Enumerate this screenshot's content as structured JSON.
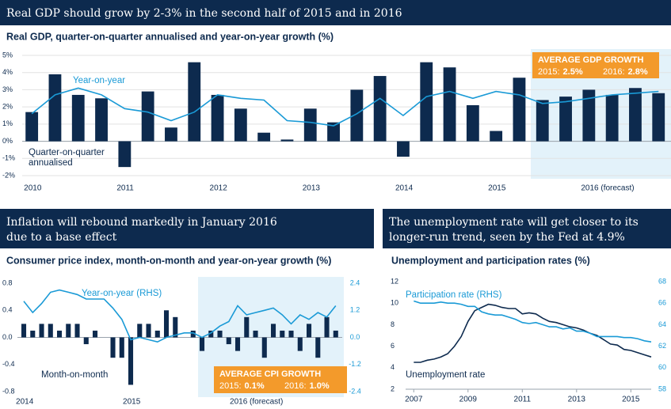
{
  "chart_data": [
    {
      "type": "bar",
      "title": [
        "Real GDP should grow by 2-3% in the second half of 2015 and in 2016"
      ],
      "subtitle": "Real GDP, quarter-on-quarter annualised and year-on-year growth (%)",
      "categories": [
        "2010",
        null,
        null,
        null,
        "2011",
        null,
        null,
        null,
        "2012",
        null,
        null,
        null,
        "2013",
        null,
        null,
        null,
        "2014",
        null,
        null,
        null,
        "2015",
        null,
        null,
        null,
        "2016 (forecast)",
        null,
        null,
        null
      ],
      "series": [
        {
          "name": "Quarter-on-quarter annualised",
          "type": "bar",
          "color": "#0d2a4e",
          "values": [
            1.7,
            3.9,
            2.7,
            2.5,
            -1.5,
            2.9,
            0.8,
            4.6,
            2.7,
            1.9,
            0.5,
            0.1,
            1.9,
            1.1,
            3.0,
            3.8,
            -0.9,
            4.6,
            4.3,
            2.1,
            0.6,
            3.7,
            2.4,
            2.6,
            3.0,
            2.7,
            3.1,
            2.8
          ]
        },
        {
          "name": "Year-on-year",
          "type": "line",
          "color": "#1a9ad6",
          "values": [
            1.6,
            2.7,
            3.1,
            2.7,
            1.9,
            1.7,
            1.2,
            1.7,
            2.7,
            2.5,
            2.4,
            1.2,
            1.1,
            0.9,
            1.6,
            2.5,
            1.5,
            2.6,
            2.9,
            2.5,
            2.9,
            2.7,
            2.2,
            2.3,
            2.5,
            2.7,
            2.8,
            2.9
          ]
        }
      ],
      "ylim": [
        -2,
        5
      ],
      "yticks": [
        {
          "value": 5,
          "label": "5%"
        },
        {
          "value": 4,
          "label": "4%"
        },
        {
          "value": 3,
          "label": "3%"
        },
        {
          "value": 2,
          "label": "2%"
        },
        {
          "value": 1,
          "label": "1%"
        },
        {
          "value": 0,
          "label": "0%"
        },
        {
          "value": -1,
          "label": "-1%"
        },
        {
          "value": -2,
          "label": "-2%"
        }
      ],
      "grid": true,
      "annotation": {
        "title": "AVERAGE GDP GROWTH",
        "items": [
          {
            "label": "2015:",
            "value": "2.5%"
          },
          {
            "label": "2016:",
            "value": "2.8%"
          }
        ]
      }
    },
    {
      "type": "bar",
      "title": [
        "Inflation will rebound markedly in January 2016",
        "due to a base effect"
      ],
      "subtitle": "Consumer price index, month-on-month and year-on-year growth (%)",
      "categories": [
        "2014",
        null,
        null,
        null,
        null,
        null,
        null,
        null,
        null,
        null,
        null,
        null,
        "2015",
        null,
        null,
        null,
        null,
        null,
        null,
        null,
        null,
        null,
        null,
        null,
        "2016 (forecast)",
        null,
        null,
        null,
        null,
        null,
        null,
        null,
        null,
        null,
        null,
        null
      ],
      "series": [
        {
          "name": "Month-on-month",
          "type": "bar",
          "color": "#0d2a4e",
          "values": [
            0.2,
            0.1,
            0.2,
            0.2,
            0.1,
            0.2,
            0.2,
            -0.1,
            0.1,
            0.0,
            -0.3,
            -0.3,
            -0.7,
            0.2,
            0.2,
            0.1,
            0.4,
            0.3,
            0.0,
            0.1,
            -0.2,
            0.1,
            0.1,
            -0.1,
            -0.2,
            0.3,
            0.1,
            -0.3,
            0.2,
            0.1,
            0.1,
            -0.2,
            0.2,
            -0.3,
            0.3,
            0.1
          ]
        },
        {
          "name": "Year-on-year (RHS)",
          "type": "line",
          "axis": "y2",
          "color": "#1a9ad6",
          "values": [
            1.6,
            1.1,
            1.5,
            2.0,
            2.1,
            2.0,
            1.9,
            1.7,
            1.7,
            1.7,
            1.3,
            0.8,
            -0.1,
            0.0,
            -0.1,
            -0.2,
            0.0,
            0.1,
            0.2,
            0.2,
            0.0,
            0.2,
            0.5,
            0.7,
            1.4,
            1.0,
            1.1,
            1.2,
            1.3,
            1.0,
            0.6,
            1.0,
            0.8,
            1.1,
            0.9,
            1.4
          ]
        }
      ],
      "ylim": [
        -0.8,
        0.8
      ],
      "yticks": [
        0.8,
        0.4,
        {
          "value": 0,
          "label": "0.0"
        },
        -0.4,
        -0.8
      ],
      "y2lim": [
        -2.4,
        2.4
      ],
      "y2ticks": [
        2.4,
        1.2,
        {
          "value": 0,
          "label": "0.0"
        },
        -1.2,
        -2.4
      ],
      "grid": false,
      "annotation": {
        "title": "AVERAGE CPI GROWTH",
        "items": [
          {
            "label": "2015:",
            "value": "0.1%"
          },
          {
            "label": "2016:",
            "value": "1.0%"
          }
        ]
      }
    },
    {
      "type": "line",
      "title": [
        "The unemployment rate will get closer to its",
        "longer-run trend, seen by the Fed at 4.9%"
      ],
      "subtitle": "Unemployment and participation rates (%)",
      "x": [
        2007,
        2007.25,
        2007.5,
        2007.75,
        2008,
        2008.25,
        2008.5,
        2008.75,
        2009,
        2009.25,
        2009.5,
        2009.75,
        2010,
        2010.25,
        2010.5,
        2010.75,
        2011,
        2011.25,
        2011.5,
        2011.75,
        2012,
        2012.25,
        2012.5,
        2012.75,
        2013,
        2013.25,
        2013.5,
        2013.75,
        2014,
        2014.25,
        2014.5,
        2014.75,
        2015,
        2015.25,
        2015.5,
        2015.75
      ],
      "series": [
        {
          "name": "Unemployment rate",
          "type": "line",
          "color": "#0d2a4e",
          "values": [
            4.5,
            4.5,
            4.7,
            4.8,
            5.0,
            5.3,
            6.0,
            6.9,
            8.3,
            9.3,
            9.6,
            9.9,
            9.8,
            9.6,
            9.5,
            9.5,
            9.0,
            9.1,
            9.0,
            8.6,
            8.3,
            8.2,
            8.0,
            7.8,
            7.7,
            7.5,
            7.2,
            7.0,
            6.6,
            6.2,
            6.1,
            5.7,
            5.6,
            5.4,
            5.2,
            5.0
          ]
        },
        {
          "name": "Participation rate (RHS)",
          "type": "line",
          "axis": "y2",
          "color": "#1a9ad6",
          "values": [
            66.2,
            66.0,
            66.0,
            66.0,
            66.1,
            66.0,
            66.0,
            65.9,
            65.7,
            65.7,
            65.2,
            65.0,
            64.9,
            64.9,
            64.7,
            64.5,
            64.2,
            64.1,
            64.2,
            64.0,
            63.8,
            63.8,
            63.6,
            63.7,
            63.4,
            63.4,
            63.2,
            62.9,
            62.9,
            62.9,
            62.9,
            62.8,
            62.8,
            62.7,
            62.5,
            62.4
          ]
        }
      ],
      "xlim": [
        2006.7,
        2015.75
      ],
      "xticks": [
        2007,
        2009,
        2011,
        2013,
        2015
      ],
      "ylim": [
        2,
        12
      ],
      "yticks": [
        12,
        10,
        8,
        6,
        4,
        2
      ],
      "y2lim": [
        58,
        68
      ],
      "y2ticks": [
        68,
        66,
        64,
        62,
        60,
        58
      ],
      "grid": false
    }
  ]
}
